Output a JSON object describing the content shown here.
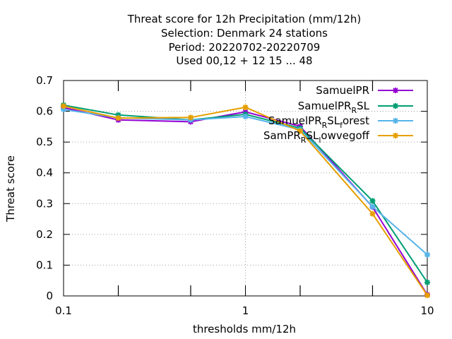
{
  "chart_data": {
    "type": "line",
    "title_lines": [
      "Threat score  for 12h Precipitation (mm/12h)",
      "Selection: Denmark     24 stations",
      "Period: 20220702-20220709",
      "Used  00,12  + 12 15 ... 48"
    ],
    "xlabel": "thresholds mm/12h",
    "ylabel": "Threat score",
    "xscale": "log",
    "xlim": [
      0.1,
      10
    ],
    "ylim": [
      0,
      0.7
    ],
    "x_ticks": [
      0.1,
      1,
      10
    ],
    "x_tick_labels": [
      "0.1",
      "1",
      "10"
    ],
    "y_ticks": [
      0,
      0.1,
      0.2,
      0.3,
      0.4,
      0.5,
      0.6,
      0.7
    ],
    "y_tick_labels": [
      "0",
      "0.1",
      "0.2",
      "0.3",
      "0.4",
      "0.5",
      "0.6",
      "0.7"
    ],
    "grid": true,
    "legend_position": "top-right",
    "x": [
      0.1,
      0.2,
      0.5,
      1,
      2,
      5,
      10
    ],
    "series": [
      {
        "name": "SamuelPR",
        "color": "#9400d3",
        "values": [
          0.612,
          0.572,
          0.566,
          0.598,
          0.551,
          0.289,
          0.004
        ]
      },
      {
        "name": "SamuelPR_RSL",
        "color": "#009e73",
        "values": [
          0.62,
          0.588,
          0.572,
          0.59,
          0.545,
          0.309,
          0.044
        ]
      },
      {
        "name": "SamuelPR_RSL_forest",
        "color": "#56b4e9",
        "values": [
          0.606,
          0.579,
          0.572,
          0.583,
          0.54,
          0.29,
          0.134
        ]
      },
      {
        "name": "SamPR_RSL_lowvegoff",
        "color": "#e69f00",
        "values": [
          0.617,
          0.578,
          0.58,
          0.613,
          0.536,
          0.267,
          0.002
        ]
      }
    ],
    "legend_entries": [
      {
        "base": "SamuelPR",
        "sub": "",
        "tail": ""
      },
      {
        "base": "SamuelPR",
        "sub": "R",
        "tail": "SL"
      },
      {
        "base": "SamuelPR",
        "sub": "R",
        "tail": "SL",
        "sub2": "f",
        "tail2": "orest"
      },
      {
        "base": "SamPR",
        "sub": "R",
        "tail": "SL",
        "sub2": "l",
        "tail2": "owvegoff"
      }
    ]
  }
}
